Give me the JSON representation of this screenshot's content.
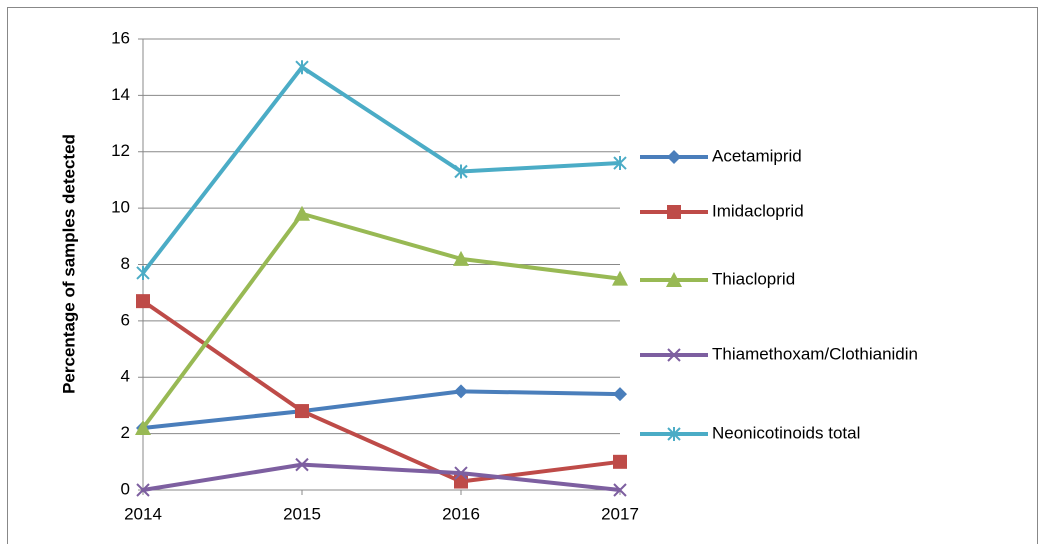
{
  "chart_data": {
    "type": "line",
    "y_label": "Percentage of samples detected",
    "x": [
      2014,
      2015,
      2016,
      2017
    ],
    "xlim": [
      2014,
      2017
    ],
    "xticks": [
      2014,
      2015,
      2016,
      2017
    ],
    "ylim": [
      0,
      16
    ],
    "yticks": [
      0,
      2,
      4,
      6,
      8,
      10,
      12,
      14,
      16
    ],
    "grid": true,
    "legend": "right",
    "series": [
      {
        "name": "Acetamiprid",
        "color": "#4a7ebb",
        "marker": "diamond",
        "values": [
          2.2,
          2.8,
          3.5,
          3.4
        ]
      },
      {
        "name": "Imidacloprid",
        "color": "#be4b48",
        "marker": "square",
        "values": [
          6.7,
          2.8,
          0.3,
          1.0
        ]
      },
      {
        "name": "Thiacloprid",
        "color": "#98b954",
        "marker": "triangle",
        "values": [
          2.2,
          9.8,
          8.2,
          7.5
        ]
      },
      {
        "name": "Thiamethoxam/Clothianidin",
        "color": "#7d5fa0",
        "marker": "x",
        "values": [
          0,
          0.9,
          0.6,
          0
        ]
      },
      {
        "name": "Neonicotinoids total",
        "color": "#4bacc6",
        "marker": "star",
        "values": [
          7.7,
          15.0,
          11.3,
          11.6
        ]
      }
    ]
  }
}
